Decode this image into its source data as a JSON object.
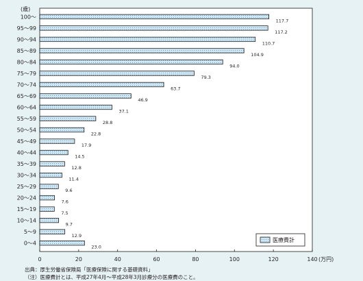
{
  "chart_data": {
    "type": "bar",
    "orientation": "horizontal",
    "y_unit_label": "(歳)",
    "x_unit_label": "(万円)",
    "categories": [
      "0～4",
      "5～9",
      "10～14",
      "15～19",
      "20～24",
      "25～29",
      "30～34",
      "35～39",
      "40～44",
      "45～49",
      "50～54",
      "55～59",
      "60～64",
      "65～69",
      "70～74",
      "75～79",
      "80～84",
      "85～89",
      "90～94",
      "95～99",
      "100～"
    ],
    "series": [
      {
        "name": "医療費計",
        "values": [
          23.0,
          12.9,
          9.7,
          7.5,
          7.6,
          9.6,
          11.4,
          12.8,
          14.5,
          17.9,
          22.8,
          28.8,
          37.1,
          46.9,
          63.7,
          79.3,
          94.0,
          104.9,
          110.7,
          117.2,
          117.7
        ],
        "labels": [
          "23.0",
          "12.9",
          "9.7",
          "7.5",
          "7.6",
          "9.6",
          "11.4",
          "12.8",
          "14.5",
          "17.9",
          "22.8",
          "28.8",
          "37.1",
          "46.9",
          "63.7",
          "79.3",
          "94.0",
          "104.9",
          "110.7",
          "117.2",
          "117.7"
        ]
      }
    ],
    "xlim": [
      0,
      140
    ],
    "xticks": [
      "0",
      "20",
      "40",
      "60",
      "80",
      "100",
      "120",
      "140"
    ],
    "legend_position": "bottom-right",
    "grid": false,
    "colors": {
      "bar_fill": "#cfe6f3",
      "bar_stroke": "#1d1d1d",
      "background": "#e7f2f4",
      "plot_bg": "#ffffff"
    }
  },
  "footnotes": {
    "source": "出典：厚生労働省保険局「医療保険に関する基礎資料」",
    "note": "（注）医療費計とは、平成27年4月～平成28年3月診療分の医療費のこと。"
  }
}
